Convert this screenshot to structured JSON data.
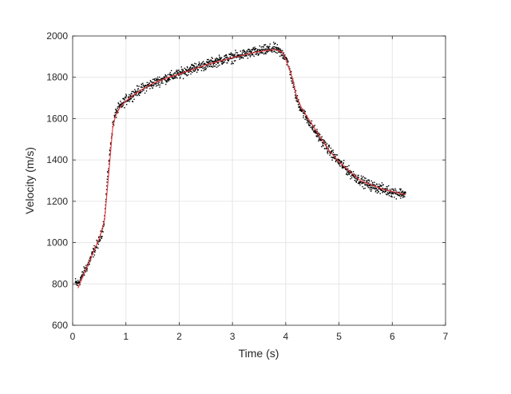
{
  "chart_data": {
    "type": "scatter",
    "title": "",
    "xlabel": "Time (s)",
    "ylabel": "Velocity (m/s)",
    "xlim": [
      0,
      7
    ],
    "ylim": [
      600,
      2000
    ],
    "xticks": [
      0,
      1,
      2,
      3,
      4,
      5,
      6,
      7
    ],
    "yticks": [
      600,
      800,
      1000,
      1200,
      1400,
      1600,
      1800,
      2000
    ],
    "grid": true,
    "legend": "none",
    "colors": {
      "points": "#000000",
      "fit": "#e8333a",
      "grid": "#e6e6e6",
      "axis": "#262626"
    },
    "series": [
      {
        "style": "points",
        "x": [
          0.05,
          0.1,
          0.2,
          0.3,
          0.4,
          0.5,
          0.55,
          0.6,
          0.65,
          0.7,
          0.75,
          0.8,
          0.85,
          0.9,
          1.0,
          1.2,
          1.5,
          1.8,
          2.0,
          2.2,
          2.5,
          2.8,
          3.0,
          3.2,
          3.5,
          3.8,
          4.0,
          4.1,
          4.2,
          4.3,
          4.4,
          4.5,
          4.6,
          4.8,
          5.0,
          5.2,
          5.4,
          5.6,
          5.8,
          6.0,
          6.25
        ],
        "y": [
          805,
          800,
          850,
          900,
          960,
          1010,
          1050,
          1120,
          1300,
          1440,
          1560,
          1620,
          1645,
          1660,
          1690,
          1730,
          1770,
          1800,
          1815,
          1840,
          1860,
          1885,
          1895,
          1910,
          1925,
          1940,
          1900,
          1810,
          1700,
          1640,
          1600,
          1560,
          1520,
          1450,
          1390,
          1340,
          1300,
          1275,
          1260,
          1245,
          1235
        ]
      },
      {
        "style": "fit-line",
        "x": [
          0.1,
          0.2,
          0.3,
          0.4,
          0.5,
          0.6,
          0.7,
          0.75,
          0.8,
          0.9,
          1.0,
          1.2,
          1.5,
          1.8,
          2.0,
          2.5,
          3.0,
          3.5,
          3.8,
          3.95,
          4.1,
          4.2,
          4.3,
          4.5,
          4.8,
          5.0,
          5.4,
          5.8,
          6.25
        ],
        "y": [
          780,
          840,
          900,
          960,
          1020,
          1110,
          1400,
          1550,
          1610,
          1660,
          1685,
          1725,
          1770,
          1800,
          1815,
          1860,
          1895,
          1925,
          1935,
          1920,
          1820,
          1710,
          1650,
          1570,
          1450,
          1390,
          1300,
          1260,
          1232
        ]
      }
    ]
  }
}
